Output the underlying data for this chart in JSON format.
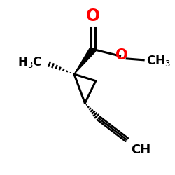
{
  "bg_color": "#ffffff",
  "bond_color": "#000000",
  "carbonyl_O_color": "#ff0000",
  "ester_O_color": "#ff0000",
  "text_color": "#000000",
  "xlim": [
    -1.2,
    1.3
  ],
  "ylim": [
    -1.1,
    1.0
  ],
  "figsize": [
    2.5,
    2.5
  ],
  "dpi": 100
}
